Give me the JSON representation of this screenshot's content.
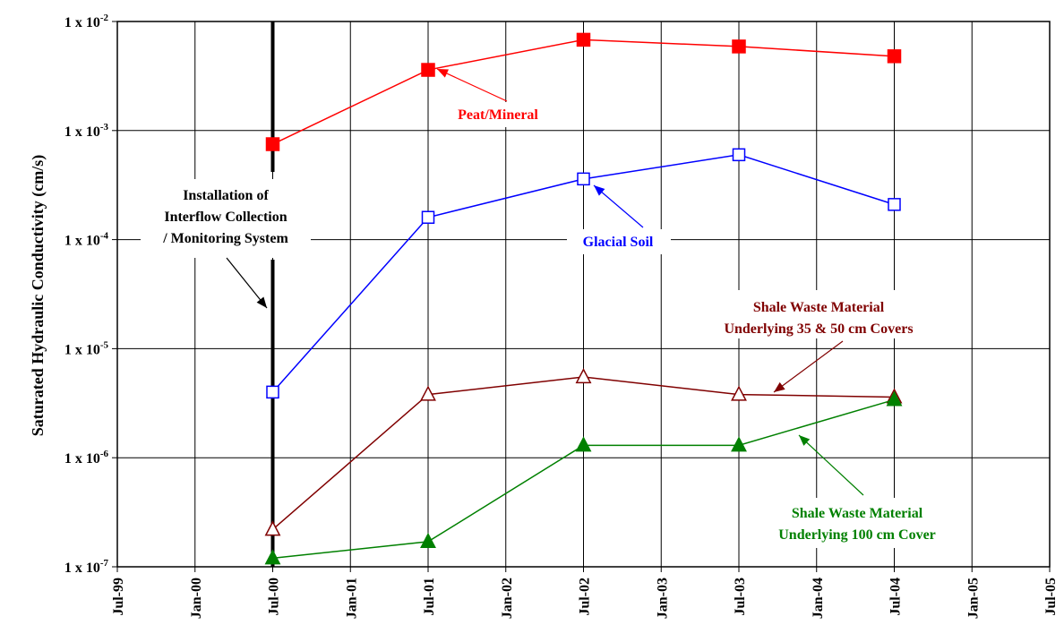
{
  "chart_data": {
    "type": "line",
    "title": "",
    "xlabel": "",
    "ylabel": "Saturated Hydraulic Conductivity (cm/s)",
    "y_scale": "log",
    "ylim": [
      1e-07,
      0.01
    ],
    "xlim": [
      "1999-07",
      "2005-07"
    ],
    "grid": true,
    "x_ticks": [
      "Jul-99",
      "Jan-00",
      "Jul-00",
      "Jan-01",
      "Jul-01",
      "Jan-02",
      "Jul-02",
      "Jan-03",
      "Jul-03",
      "Jan-04",
      "Jul-04",
      "Jan-05",
      "Jul-05"
    ],
    "y_ticks": [
      {
        "base": "1 x 10",
        "exp": "-7"
      },
      {
        "base": "1 x 10",
        "exp": "-6"
      },
      {
        "base": "1 x 10",
        "exp": "-5"
      },
      {
        "base": "1 x 10",
        "exp": "-4"
      },
      {
        "base": "1 x 10",
        "exp": "-3"
      },
      {
        "base": "1 x 10",
        "exp": "-2"
      }
    ],
    "series": [
      {
        "name": "Peat/Mineral",
        "color": "#ff0000",
        "marker": "filled-square",
        "x": [
          "2000-07",
          "2001-07",
          "2002-07",
          "2003-07",
          "2004-07"
        ],
        "y": [
          0.00075,
          0.0036,
          0.0068,
          0.0059,
          0.0048
        ]
      },
      {
        "name": "Glacial Soil",
        "color": "#0000ff",
        "marker": "open-square",
        "x": [
          "2000-07",
          "2001-07",
          "2002-07",
          "2003-07",
          "2004-07"
        ],
        "y": [
          4e-06,
          0.00016,
          0.00036,
          0.0006,
          0.00021
        ]
      },
      {
        "name": "Shale Waste Material Underlying 35 & 50 cm Covers",
        "color": "#800000",
        "marker": "open-triangle",
        "x": [
          "2000-07",
          "2001-07",
          "2002-07",
          "2003-07",
          "2004-07"
        ],
        "y": [
          2.2e-07,
          3.8e-06,
          5.5e-06,
          3.8e-06,
          3.6e-06
        ]
      },
      {
        "name": "Shale Waste Material Underlying 100 cm Cover",
        "color": "#008000",
        "marker": "filled-triangle",
        "x": [
          "2000-07",
          "2001-07",
          "2002-07",
          "2003-07",
          "2004-07"
        ],
        "y": [
          1.2e-07,
          1.7e-07,
          1.3e-06,
          1.3e-06,
          3.4e-06
        ]
      }
    ],
    "annotations": [
      {
        "id": "installation",
        "lines": [
          "Installation of",
          "Interflow Collection",
          "/ Monitoring System"
        ],
        "color": "#000000",
        "event_x": "2000-07"
      },
      {
        "id": "peat",
        "lines": [
          "Peat/Mineral"
        ],
        "color": "#ff0000"
      },
      {
        "id": "glacial",
        "lines": [
          "Glacial Soil"
        ],
        "color": "#0000ff"
      },
      {
        "id": "shale35",
        "lines": [
          "Shale Waste Material",
          "Underlying 35 & 50 cm Covers"
        ],
        "color": "#800000"
      },
      {
        "id": "shale100",
        "lines": [
          "Shale Waste Material",
          "Underlying 100 cm Cover"
        ],
        "color": "#008000"
      }
    ]
  }
}
